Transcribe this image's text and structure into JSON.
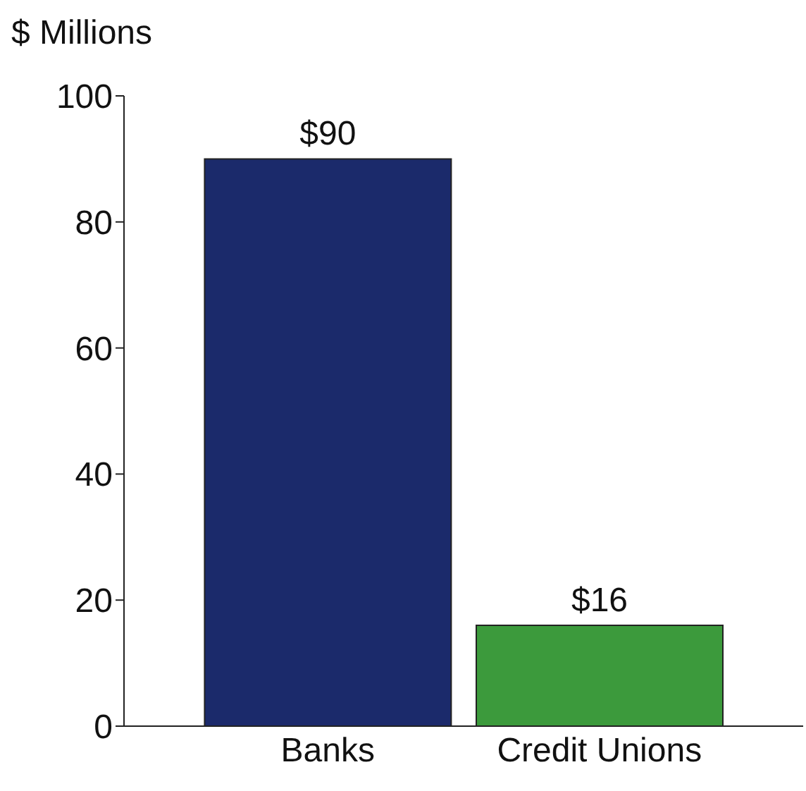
{
  "chart_data": {
    "type": "bar",
    "ylabel": "$ Millions",
    "categories": [
      "Banks",
      "Credit Unions"
    ],
    "values": [
      90,
      16
    ],
    "colors": [
      "#1b2a6b",
      "#3c9a3c"
    ],
    "value_labels": [
      "$90",
      "$16"
    ],
    "ylim": [
      0,
      100
    ],
    "yticks": [
      0,
      20,
      40,
      60,
      80,
      100
    ],
    "grid": false
  }
}
